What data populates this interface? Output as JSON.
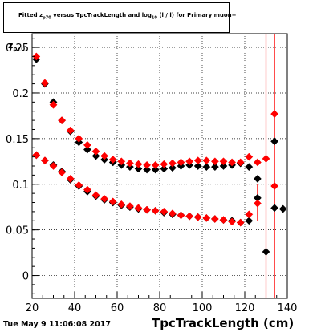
{
  "title_parts": {
    "a": "Fitted  z",
    "a_sub": "p70",
    "b": "  versus  TpcTrackLength and log",
    "b_sub": "10",
    "c": " (l / l) for Primary muon+"
  },
  "ylabel_parts": {
    "main": "z",
    "sub": "p70"
  },
  "timestamp": "Tue May  9 11:06:08 2017",
  "colors": {
    "black": "#000000",
    "red": "#ff0000",
    "grid": "#000000",
    "frame": "#000000"
  },
  "chart_data": {
    "type": "scatter",
    "title": "Fitted z_p70 versus TpcTrackLength and log10(l/l) for Primary muon+",
    "xlabel": "TpcTrackLength (cm)",
    "ylabel": "z_p70",
    "xlim": [
      20,
      140
    ],
    "ylim": [
      -0.025,
      0.265
    ],
    "grid": true,
    "marker": "diamond",
    "x_ticks": [
      20,
      40,
      60,
      80,
      100,
      120,
      140
    ],
    "y_ticks": [
      0,
      0.05,
      0.1,
      0.15,
      0.2,
      0.25
    ],
    "series": [
      {
        "color": "#000000",
        "points": [
          [
            22,
            0.237
          ],
          [
            26,
            0.21
          ],
          [
            30,
            0.19
          ],
          [
            34,
            0.17
          ],
          [
            38,
            0.158
          ],
          [
            42,
            0.146
          ],
          [
            46,
            0.138
          ],
          [
            50,
            0.131
          ],
          [
            54,
            0.127
          ],
          [
            58,
            0.124
          ],
          [
            62,
            0.121
          ],
          [
            66,
            0.119
          ],
          [
            70,
            0.117
          ],
          [
            74,
            0.116
          ],
          [
            78,
            0.116
          ],
          [
            82,
            0.117
          ],
          [
            86,
            0.118
          ],
          [
            90,
            0.12
          ],
          [
            94,
            0.121
          ],
          [
            98,
            0.12
          ],
          [
            102,
            0.119
          ],
          [
            106,
            0.119
          ],
          [
            110,
            0.12
          ],
          [
            114,
            0.121
          ],
          [
            118,
            0.123
          ],
          [
            122,
            0.119
          ],
          [
            126,
            0.106
          ],
          [
            130,
            0.026
          ],
          [
            134,
            0.074
          ],
          [
            138,
            0.073
          ]
        ]
      },
      {
        "color": "#000000",
        "points": [
          [
            22,
            0.132
          ],
          [
            26,
            0.126
          ],
          [
            30,
            0.121
          ],
          [
            34,
            0.114
          ],
          [
            38,
            0.105
          ],
          [
            42,
            0.098
          ],
          [
            46,
            0.092
          ],
          [
            50,
            0.087
          ],
          [
            54,
            0.083
          ],
          [
            58,
            0.08
          ],
          [
            62,
            0.077
          ],
          [
            66,
            0.075
          ],
          [
            70,
            0.073
          ],
          [
            74,
            0.072
          ],
          [
            78,
            0.071
          ],
          [
            82,
            0.069
          ],
          [
            86,
            0.067
          ],
          [
            90,
            0.066
          ],
          [
            94,
            0.065
          ],
          [
            98,
            0.064
          ],
          [
            102,
            0.063
          ],
          [
            106,
            0.062
          ],
          [
            110,
            0.061
          ],
          [
            114,
            0.06
          ],
          [
            118,
            0.058
          ],
          [
            122,
            0.06
          ],
          [
            126,
            0.085
          ],
          [
            134,
            0.147
          ]
        ]
      },
      {
        "color": "#ff0000",
        "points": [
          [
            22,
            0.24
          ],
          [
            26,
            0.211
          ],
          [
            30,
            0.187
          ],
          [
            34,
            0.17
          ],
          [
            38,
            0.159
          ],
          [
            42,
            0.15
          ],
          [
            46,
            0.143
          ],
          [
            50,
            0.136
          ],
          [
            54,
            0.131
          ],
          [
            58,
            0.127
          ],
          [
            62,
            0.125
          ],
          [
            66,
            0.123
          ],
          [
            70,
            0.122
          ],
          [
            74,
            0.121
          ],
          [
            78,
            0.121
          ],
          [
            82,
            0.122
          ],
          [
            86,
            0.123
          ],
          [
            90,
            0.124
          ],
          [
            94,
            0.125
          ],
          [
            98,
            0.126
          ],
          [
            102,
            0.126
          ],
          [
            106,
            0.125
          ],
          [
            110,
            0.125
          ],
          [
            114,
            0.124
          ],
          [
            118,
            0.124
          ],
          [
            122,
            0.13
          ],
          [
            126,
            0.124
          ],
          [
            130,
            0.128
          ],
          [
            134,
            0.098
          ]
        ]
      },
      {
        "color": "#ff0000",
        "points": [
          [
            22,
            0.132
          ],
          [
            26,
            0.126
          ],
          [
            30,
            0.12
          ],
          [
            34,
            0.113
          ],
          [
            38,
            0.106
          ],
          [
            42,
            0.099
          ],
          [
            46,
            0.094
          ],
          [
            50,
            0.088
          ],
          [
            54,
            0.084
          ],
          [
            58,
            0.081
          ],
          [
            62,
            0.078
          ],
          [
            66,
            0.076
          ],
          [
            70,
            0.074
          ],
          [
            74,
            0.072
          ],
          [
            78,
            0.071
          ],
          [
            82,
            0.07
          ],
          [
            86,
            0.068
          ],
          [
            90,
            0.066
          ],
          [
            94,
            0.065
          ],
          [
            98,
            0.064
          ],
          [
            102,
            0.063
          ],
          [
            106,
            0.062
          ],
          [
            110,
            0.061
          ],
          [
            114,
            0.059
          ],
          [
            118,
            0.058
          ],
          [
            122,
            0.067
          ],
          [
            126,
            0.079
          ],
          [
            134,
            0.177
          ]
        ]
      }
    ],
    "error_bars": [
      {
        "color": "#ff0000",
        "x": 130,
        "ylow": -0.025,
        "yhigh": 0.265
      },
      {
        "color": "#ff0000",
        "x": 134,
        "ylow": -0.025,
        "yhigh": 0.265
      },
      {
        "color": "#ff0000",
        "x": 126,
        "ylow": 0.06,
        "yhigh": 0.1
      }
    ]
  }
}
